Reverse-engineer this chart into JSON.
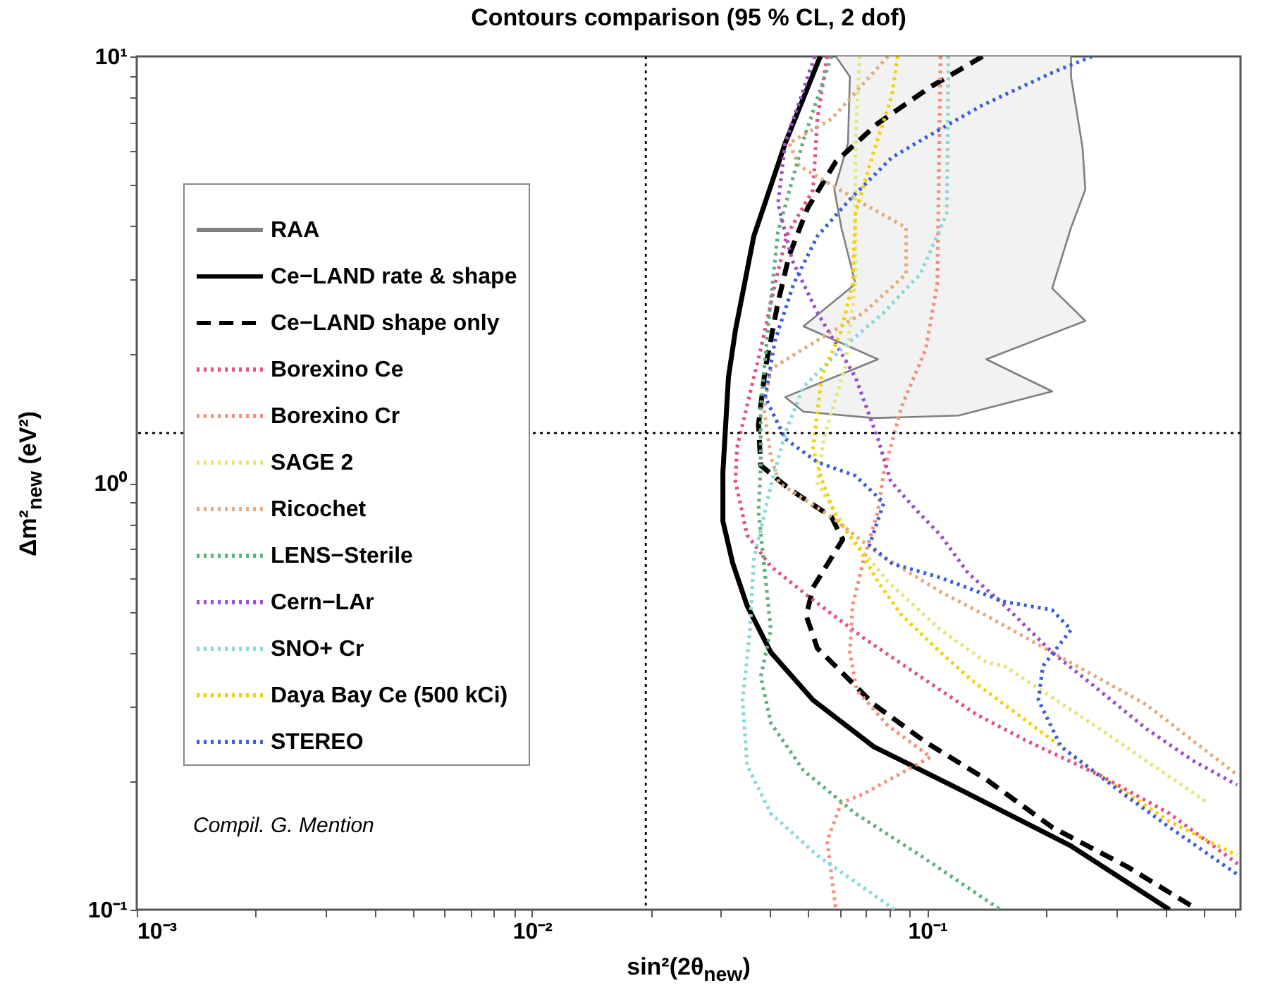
{
  "chart_data": {
    "type": "line",
    "title": "Contours comparison (95 % CL, 2 dof)",
    "xlabel": "sin²(2θ$_{new}$)",
    "ylabel": "Δm²$_{new}$ (eV²)",
    "log": "xy",
    "grid": false,
    "legend": "left",
    "marker": "none",
    "xlim": [
      0.001,
      0.62
    ],
    "ylim": [
      0.1,
      10
    ],
    "xticks": [
      {
        "value": 0.001,
        "label": "10⁻³"
      },
      {
        "value": 0.002,
        "label": null
      },
      {
        "value": 0.003,
        "label": null
      },
      {
        "value": 0.004,
        "label": null
      },
      {
        "value": 0.005,
        "label": null
      },
      {
        "value": 0.006,
        "label": null
      },
      {
        "value": 0.007,
        "label": null
      },
      {
        "value": 0.008,
        "label": null
      },
      {
        "value": 0.009,
        "label": null
      },
      {
        "value": 0.01,
        "label": "10⁻²"
      },
      {
        "value": 0.02,
        "label": null
      },
      {
        "value": 0.03,
        "label": null
      },
      {
        "value": 0.04,
        "label": null
      },
      {
        "value": 0.05,
        "label": null
      },
      {
        "value": 0.06,
        "label": null
      },
      {
        "value": 0.07,
        "label": null
      },
      {
        "value": 0.08,
        "label": null
      },
      {
        "value": 0.09,
        "label": null
      },
      {
        "value": 0.1,
        "label": "10⁻¹"
      },
      {
        "value": 0.2,
        "label": null
      },
      {
        "value": 0.3,
        "label": null
      },
      {
        "value": 0.4,
        "label": null
      },
      {
        "value": 0.5,
        "label": null
      },
      {
        "value": 0.6,
        "label": null
      }
    ],
    "yticks": [
      {
        "value": 0.1,
        "label": "10⁻¹"
      },
      {
        "value": 0.2,
        "label": null
      },
      {
        "value": 0.3,
        "label": null
      },
      {
        "value": 0.4,
        "label": null
      },
      {
        "value": 0.5,
        "label": null
      },
      {
        "value": 0.6,
        "label": null
      },
      {
        "value": 0.7,
        "label": null
      },
      {
        "value": 0.8,
        "label": null
      },
      {
        "value": 0.9,
        "label": null
      },
      {
        "value": 1,
        "label": "10⁰"
      },
      {
        "value": 2,
        "label": null
      },
      {
        "value": 3,
        "label": null
      },
      {
        "value": 4,
        "label": null
      },
      {
        "value": 5,
        "label": null
      },
      {
        "value": 6,
        "label": null
      },
      {
        "value": 7,
        "label": null
      },
      {
        "value": 8,
        "label": null
      },
      {
        "value": 9,
        "label": null
      },
      {
        "value": 10,
        "label": "10¹"
      }
    ],
    "ref_lines": [
      {
        "axis": "x",
        "value": 0.0194,
        "line_style": "dotted",
        "color": "#000000"
      },
      {
        "axis": "y",
        "value": 1.31,
        "line_style": "dotted",
        "color": "#000000"
      }
    ],
    "annotations": [
      "Compil. G. Mention"
    ],
    "series": [
      {
        "name": "RAA",
        "type": "area",
        "color": "#7f7f7f",
        "line_style": "solid",
        "x": [
          0.0587,
          0.0637,
          0.063,
          0.0582,
          0.0606,
          0.0658,
          0.0486,
          0.075,
          0.0437,
          0.0486,
          0.0732,
          0.12,
          0.207,
          0.141,
          0.251,
          0.207,
          0.231,
          0.251,
          0.247,
          0.231,
          0.231
        ],
        "values": [
          10,
          8.96,
          6.26,
          4.87,
          3.97,
          2.93,
          2.33,
          1.95,
          1.59,
          1.47,
          1.42,
          1.44,
          1.64,
          1.95,
          2.4,
          2.86,
          3.97,
          4.87,
          6.12,
          8.96,
          10
        ]
      },
      {
        "name": "Ce−LAND rate & shape",
        "type": "line",
        "color": "#000000",
        "line_style": "solid",
        "x": [
          0.0536,
          0.0437,
          0.0364,
          0.0327,
          0.0314,
          0.0304,
          0.0304,
          0.0322,
          0.035,
          0.0402,
          0.0514,
          0.0732,
          0.12,
          0.231,
          0.41
        ],
        "values": [
          10,
          6.26,
          3.79,
          2.28,
          1.77,
          1.06,
          0.814,
          0.648,
          0.516,
          0.401,
          0.31,
          0.241,
          0.192,
          0.141,
          0.1
        ]
      },
      {
        "name": "Ce−LAND shape only",
        "type": "line",
        "color": "#000000",
        "line_style": "dashed",
        "x": [
          0.138,
          0.102,
          0.075,
          0.0587,
          0.0498,
          0.0447,
          0.0419,
          0.0389,
          0.0374,
          0.0379,
          0.0447,
          0.0572,
          0.0611,
          0.0514,
          0.0494,
          0.0527,
          0.0606,
          0.0732,
          0.0991,
          0.141,
          0.207,
          0.321,
          0.483
        ],
        "values": [
          10,
          8.49,
          6.97,
          5.67,
          4.41,
          3.41,
          2.65,
          1.85,
          1.37,
          1.1,
          0.97,
          0.833,
          0.738,
          0.569,
          0.489,
          0.41,
          0.361,
          0.303,
          0.247,
          0.202,
          0.156,
          0.126,
          0.1
        ]
      },
      {
        "name": "Borexino Ce",
        "type": "line",
        "color": "#e0508a",
        "line_style": "dotted",
        "x": [
          0.0558,
          0.0527,
          0.0514,
          0.044,
          0.0412,
          0.0379,
          0.035,
          0.033,
          0.0327,
          0.035,
          0.0402,
          0.0498,
          0.0691,
          0.096,
          0.133,
          0.181,
          0.272,
          0.41,
          0.61
        ],
        "values": [
          10,
          7.13,
          4.87,
          3.79,
          2.93,
          2.06,
          1.52,
          1.21,
          1.01,
          0.755,
          0.638,
          0.544,
          0.433,
          0.352,
          0.287,
          0.247,
          0.207,
          0.168,
          0.128
        ]
      },
      {
        "name": "Borexino Cr",
        "type": "line",
        "color": "#f4907a",
        "line_style": "dotted",
        "x": [
          0.108,
          0.106,
          0.0991,
          0.0863,
          0.0776,
          0.075,
          0.0691,
          0.0647,
          0.0637,
          0.0663,
          0.0795,
          0.102,
          0.0691,
          0.0606,
          0.0558,
          0.0587
        ],
        "values": [
          10,
          2.93,
          2.06,
          1.52,
          1.06,
          0.859,
          0.663,
          0.516,
          0.401,
          0.327,
          0.27,
          0.228,
          0.187,
          0.178,
          0.145,
          0.1
        ]
      },
      {
        "name": "SAGE 2",
        "type": "line",
        "color": "#e6e27a",
        "line_style": "dotted",
        "x": [
          0.0674,
          0.0658,
          0.0658,
          0.0621,
          0.0549,
          0.0527,
          0.0637,
          0.0795,
          0.108,
          0.141,
          0.157,
          0.272,
          0.512
        ],
        "values": [
          10,
          6.36,
          2.97,
          1.88,
          1.29,
          1,
          0.755,
          0.587,
          0.453,
          0.38,
          0.372,
          0.266,
          0.178
        ]
      },
      {
        "name": "Ricochet",
        "type": "line",
        "color": "#e0ac7c",
        "line_style": "dotted",
        "x": [
          0.0795,
          0.0572,
          0.0447,
          0.0474,
          0.0691,
          0.0884,
          0.0884,
          0.0691,
          0.0527,
          0.0402,
          0.0386,
          0.0402,
          0.0422,
          0.0572,
          0.075,
          0.108,
          0.141,
          0.207,
          0.357,
          0.608
        ],
        "values": [
          10,
          7.13,
          6.26,
          5.54,
          4.51,
          3.97,
          3.09,
          2.51,
          2.16,
          1.85,
          1.5,
          1.15,
          1,
          0.833,
          0.684,
          0.556,
          0.489,
          0.401,
          0.303,
          0.207
        ]
      },
      {
        "name": "LENS−Sterile",
        "type": "line",
        "color": "#5fb07a",
        "line_style": "dotted",
        "x": [
          0.0572,
          0.0486,
          0.0419,
          0.0396,
          0.0379,
          0.0379,
          0.0374,
          0.0402,
          0.0379,
          0.0402,
          0.0486,
          0.0658,
          0.096,
          0.153
        ],
        "values": [
          10,
          6.36,
          3.88,
          2.36,
          1.5,
          1.1,
          0.859,
          0.453,
          0.352,
          0.274,
          0.212,
          0.168,
          0.134,
          0.1
        ]
      },
      {
        "name": "Cern−LAr",
        "type": "line",
        "color": "#9a4fc8",
        "line_style": "dotted",
        "x": [
          0.0519,
          0.0437,
          0.0419,
          0.0455,
          0.0527,
          0.0658,
          0.075,
          0.0808,
          0.0937,
          0.108,
          0.127,
          0.157,
          0.207,
          0.272,
          0.357,
          0.472,
          0.608
        ],
        "values": [
          10,
          6.26,
          4.51,
          3.33,
          2.51,
          1.77,
          1.27,
          1.01,
          0.865,
          0.755,
          0.614,
          0.516,
          0.401,
          0.327,
          0.266,
          0.223,
          0.196
        ]
      },
      {
        "name": "SNO+ Cr",
        "type": "line",
        "color": "#88d8d8",
        "line_style": "dotted",
        "x": [
          0.113,
          0.113,
          0.112,
          0.096,
          0.0776,
          0.0606,
          0.0486,
          0.0437,
          0.0402,
          0.0364,
          0.0356,
          0.0341,
          0.035,
          0.0402,
          0.0527,
          0.0828
        ],
        "values": [
          10,
          8.49,
          4.28,
          3.09,
          2.51,
          2.06,
          1.68,
          1.31,
          0.985,
          0.663,
          0.453,
          0.31,
          0.218,
          0.168,
          0.134,
          0.1
        ]
      },
      {
        "name": "Daya Bay Ce (500 kCi)",
        "type": "line",
        "color": "#f5d000",
        "line_style": "dotted",
        "x": [
          0.0841,
          0.0814,
          0.0732,
          0.0658,
          0.0647,
          0.0606,
          0.054,
          0.0514,
          0.054,
          0.0587,
          0.0674,
          0.075,
          0.0863,
          0.108,
          0.13,
          0.181,
          0.272,
          0.41,
          0.608
        ],
        "values": [
          10,
          8.11,
          5.98,
          4.28,
          2.93,
          2.28,
          1.77,
          1.21,
          1.02,
          0.833,
          0.699,
          0.587,
          0.489,
          0.401,
          0.344,
          0.274,
          0.207,
          0.161,
          0.134
        ]
      },
      {
        "name": "STEREO",
        "type": "line",
        "color": "#3c5fd8",
        "line_style": "dotted",
        "x": [
          0.261,
          0.207,
          0.138,
          0.108,
          0.0814,
          0.0637,
          0.0527,
          0.0459,
          0.0412,
          0.0389,
          0.0437,
          0.0527,
          0.0658,
          0.0776,
          0.0714,
          0.0814,
          0.108,
          0.157,
          0.207,
          0.231,
          0.196,
          0.191,
          0.218,
          0.313,
          0.41,
          0.608
        ],
        "values": [
          10,
          9.16,
          7.69,
          6.76,
          5.8,
          4.62,
          3.79,
          2.93,
          2.16,
          1.59,
          1.27,
          1.12,
          1.04,
          0.899,
          0.715,
          0.648,
          0.6,
          0.527,
          0.504,
          0.453,
          0.372,
          0.31,
          0.241,
          0.187,
          0.156,
          0.121
        ]
      }
    ]
  }
}
